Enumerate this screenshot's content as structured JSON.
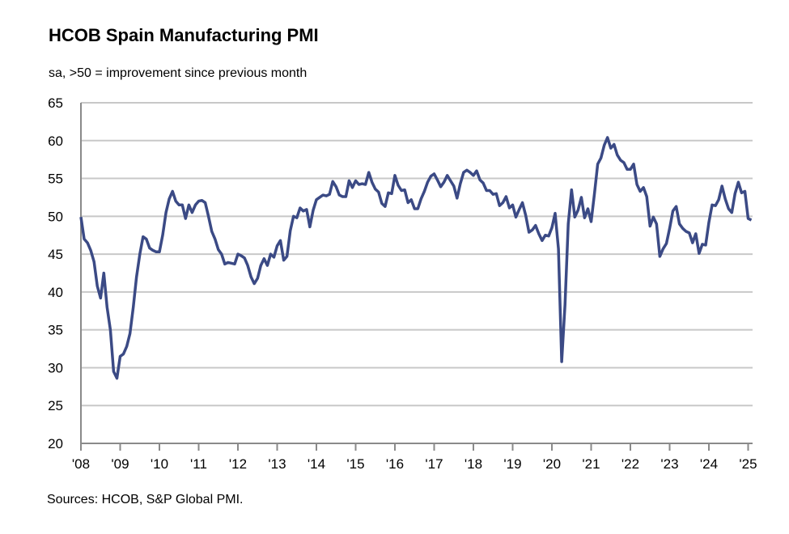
{
  "chart_data": {
    "type": "line",
    "title": "HCOB Spain Manufacturing PMI",
    "subtitle": "sa, >50 = improvement since previous month",
    "source": "Sources: HCOB, S&P Global PMI.",
    "ylim": [
      20,
      65
    ],
    "yticks": [
      "20",
      "25",
      "30",
      "35",
      "40",
      "45",
      "50",
      "55",
      "60",
      "65"
    ],
    "xticks": [
      "'08",
      "'09",
      "'10",
      "'11",
      "'12",
      "'13",
      "'14",
      "'15",
      "'16",
      "'17",
      "'18",
      "'19",
      "'20",
      "'21",
      "'22",
      "'23",
      "'24",
      "'25"
    ],
    "grid": "horizontal",
    "line_color": "#3b4a85",
    "start": "2008-01",
    "frequency": "monthly",
    "values": [
      49.9,
      47.0,
      46.5,
      45.5,
      44.0,
      40.8,
      39.2,
      42.5,
      38.0,
      35.0,
      29.5,
      28.6,
      31.5,
      31.8,
      32.8,
      34.5,
      38.0,
      42.0,
      45.0,
      47.3,
      47.0,
      45.8,
      45.5,
      45.3,
      45.3,
      47.5,
      50.5,
      52.3,
      53.3,
      52.0,
      51.5,
      51.5,
      49.7,
      51.5,
      50.5,
      51.5,
      52.0,
      52.1,
      51.8,
      50.0,
      48.0,
      47.0,
      45.6,
      45.0,
      43.7,
      43.9,
      43.8,
      43.7,
      45.0,
      44.8,
      44.5,
      43.5,
      42.0,
      41.1,
      41.8,
      43.5,
      44.4,
      43.5,
      45.0,
      44.6,
      46.1,
      46.8,
      44.2,
      44.7,
      48.1,
      50.0,
      49.8,
      51.1,
      50.7,
      50.9,
      48.6,
      50.8,
      52.2,
      52.5,
      52.8,
      52.7,
      52.9,
      54.6,
      53.9,
      52.8,
      52.6,
      52.6,
      54.7,
      53.8,
      54.7,
      54.2,
      54.3,
      54.2,
      55.8,
      54.5,
      53.6,
      53.2,
      51.7,
      51.3,
      53.1,
      53.0,
      55.4,
      54.1,
      53.4,
      53.5,
      51.8,
      52.2,
      51.0,
      51.0,
      52.3,
      53.3,
      54.5,
      55.3,
      55.6,
      54.8,
      53.9,
      54.5,
      55.4,
      54.7,
      54.0,
      52.4,
      54.3,
      55.8,
      56.1,
      55.8,
      55.4,
      56.0,
      54.8,
      54.4,
      53.4,
      53.4,
      52.9,
      53.0,
      51.4,
      51.8,
      52.6,
      51.1,
      51.5,
      49.9,
      50.9,
      51.8,
      50.1,
      47.9,
      48.2,
      48.8,
      47.7,
      46.8,
      47.5,
      47.4,
      48.5,
      50.4,
      45.7,
      30.8,
      38.3,
      49.0,
      53.5,
      49.9,
      50.8,
      52.5,
      49.8,
      51.0,
      49.3,
      52.9,
      56.9,
      57.7,
      59.4,
      60.4,
      59.0,
      59.5,
      58.1,
      57.4,
      57.1,
      56.2,
      56.2,
      56.9,
      54.2,
      53.3,
      53.8,
      52.6,
      48.7,
      49.9,
      49.0,
      44.7,
      45.7,
      46.4,
      48.4,
      50.7,
      51.3,
      49.0,
      48.4,
      48.0,
      47.8,
      46.5,
      47.7,
      45.1,
      46.3,
      46.2,
      49.2,
      51.5,
      51.4,
      52.2,
      54.0,
      52.3,
      51.0,
      50.5,
      53.0,
      54.5,
      53.1,
      53.3,
      49.7,
      49.5
    ]
  }
}
